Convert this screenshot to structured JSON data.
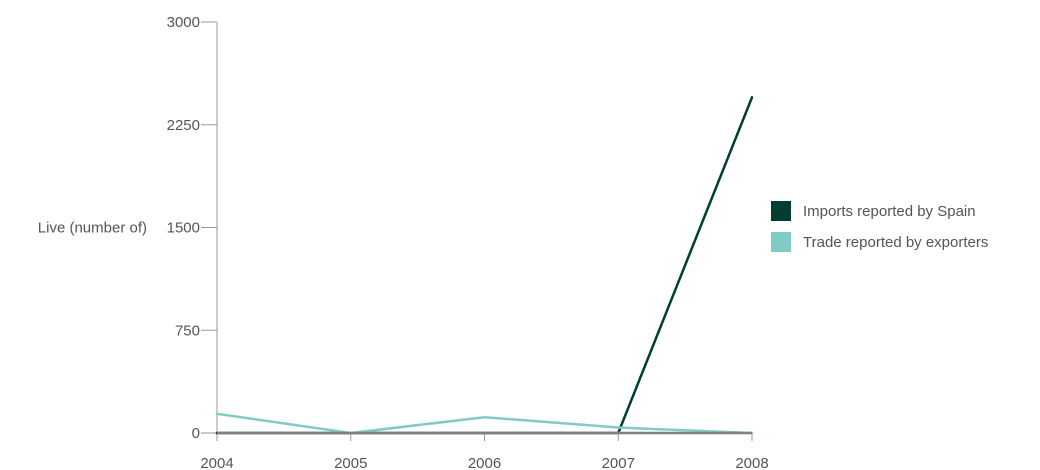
{
  "chart_data": {
    "type": "line",
    "ylabel": "Live (number of)",
    "xlabel": "",
    "title": "",
    "categories": [
      "2004",
      "2005",
      "2006",
      "2007",
      "2008"
    ],
    "ylim": [
      0,
      3000
    ],
    "yticks": [
      0,
      750,
      1500,
      2250,
      3000
    ],
    "grid": false,
    "legend_position": "right",
    "series": [
      {
        "name": "Imports reported by Spain",
        "color": "#003d33",
        "values": [
          0,
          0,
          0,
          0,
          2450
        ]
      },
      {
        "name": "Trade reported by exporters",
        "color": "#80cbc4",
        "values": [
          140,
          0,
          115,
          40,
          0
        ]
      }
    ],
    "baseline_color": "#808080"
  }
}
